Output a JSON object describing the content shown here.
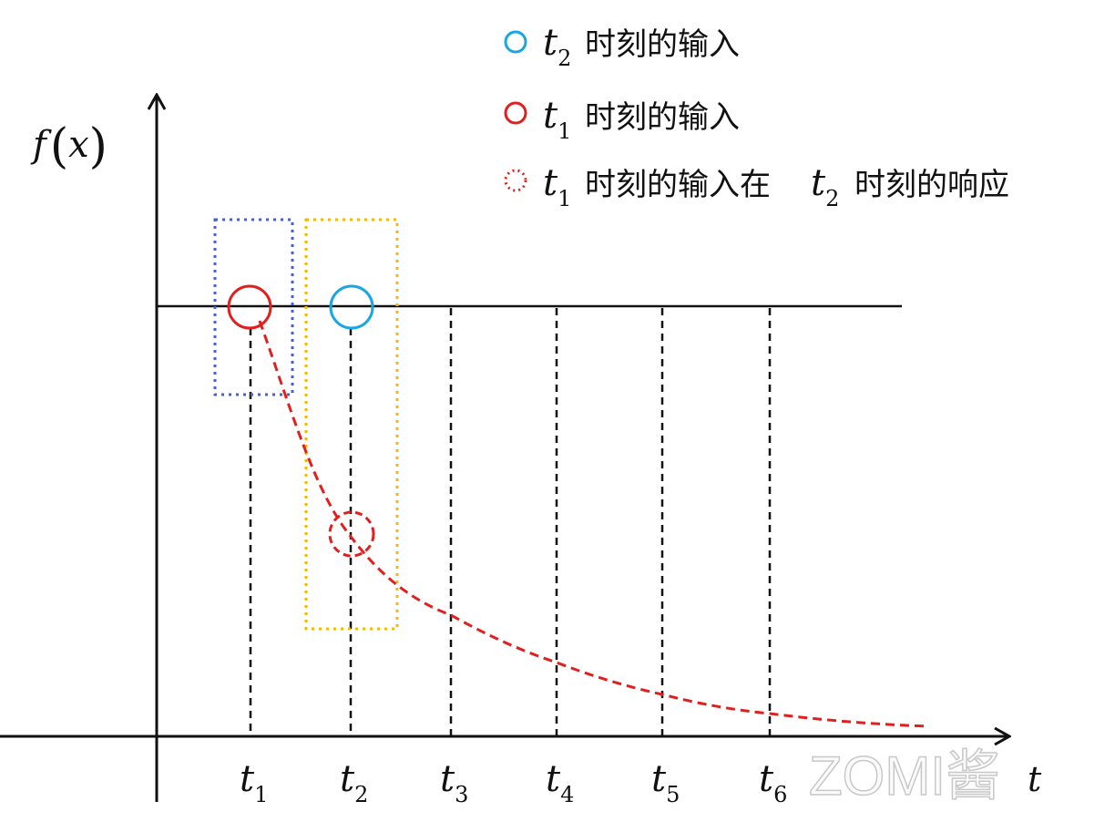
{
  "y_label": {
    "main": "f",
    "paren_open": "(",
    "var": "x",
    "paren_close": ")"
  },
  "x_axis_label": "t",
  "ticks": [
    {
      "main": "t",
      "sub": "1"
    },
    {
      "main": "t",
      "sub": "2"
    },
    {
      "main": "t",
      "sub": "3"
    },
    {
      "main": "t",
      "sub": "4"
    },
    {
      "main": "t",
      "sub": "5"
    },
    {
      "main": "t",
      "sub": "6"
    }
  ],
  "legend": [
    {
      "marker": "circle-solid",
      "color": "#1aa7e0",
      "main": "t",
      "sub": "2",
      "text": "时刻的输入"
    },
    {
      "marker": "circle-solid",
      "color": "#e0201f",
      "main": "t",
      "sub": "1",
      "text": "时刻的输入"
    },
    {
      "marker": "circle-dotted",
      "color": "#e0201f",
      "main": "t",
      "sub": "1",
      "text": "时刻的输入在",
      "main2": "t",
      "sub2": "2",
      "text2": "时刻的响应"
    }
  ],
  "colors": {
    "blue_box": "#4a5fd0",
    "orange_box": "#f5b800",
    "response_curve": "#e0201f",
    "t2_input": "#1aa7e0",
    "t1_input": "#e0201f"
  },
  "watermark": "ZOMI酱"
}
